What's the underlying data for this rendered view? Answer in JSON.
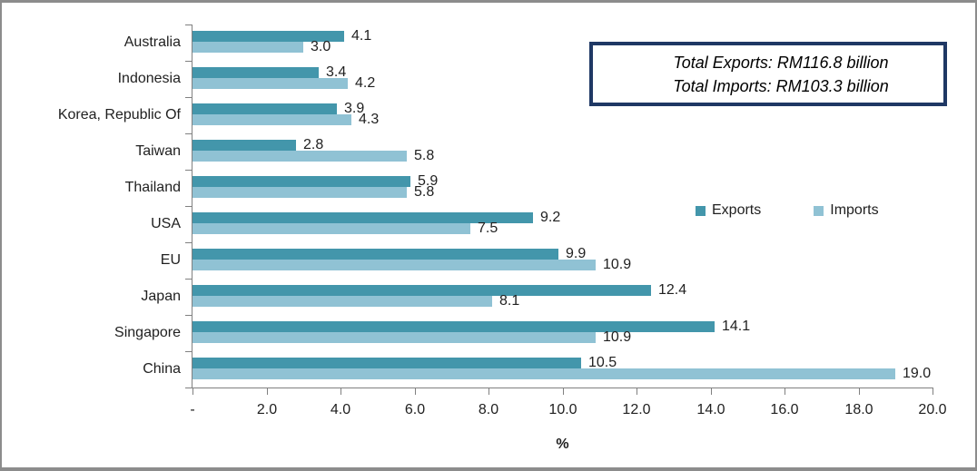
{
  "chart_data": {
    "type": "bar",
    "orientation": "horizontal",
    "categories": [
      "Australia",
      "Indonesia",
      "Korea, Republic Of",
      "Taiwan",
      "Thailand",
      "USA",
      "EU",
      "Japan",
      "Singapore",
      "China"
    ],
    "series": [
      {
        "name": "Exports",
        "color": "#4396ab",
        "values": [
          4.1,
          3.4,
          3.9,
          2.8,
          5.9,
          9.2,
          9.9,
          12.4,
          14.1,
          10.5
        ]
      },
      {
        "name": "Imports",
        "color": "#90c2d4",
        "values": [
          3.0,
          4.2,
          4.3,
          5.8,
          5.8,
          7.5,
          10.9,
          8.1,
          10.9,
          19.0
        ]
      }
    ],
    "title": "",
    "xlabel": "%",
    "ylabel": "",
    "xlim": [
      0,
      20
    ],
    "xtick_labels": [
      "-",
      "2.0",
      "4.0",
      "6.0",
      "8.0",
      "10.0",
      "12.0",
      "14.0",
      "16.0",
      "18.0",
      "20.0"
    ],
    "value_labels_shown": true,
    "value_label_decimals": 1,
    "grid": false,
    "legend_position": "center-right"
  },
  "annotation_box": {
    "line1": "Total Exports: RM116.8 billion",
    "line2": "Total Imports: RM103.3 billion"
  },
  "colors": {
    "exports": "#4396ab",
    "imports": "#90c2d4",
    "axis": "#808080",
    "box_border": "#1f3864",
    "frame_border": "#8c8c8c",
    "text": "#1f1f1f"
  }
}
